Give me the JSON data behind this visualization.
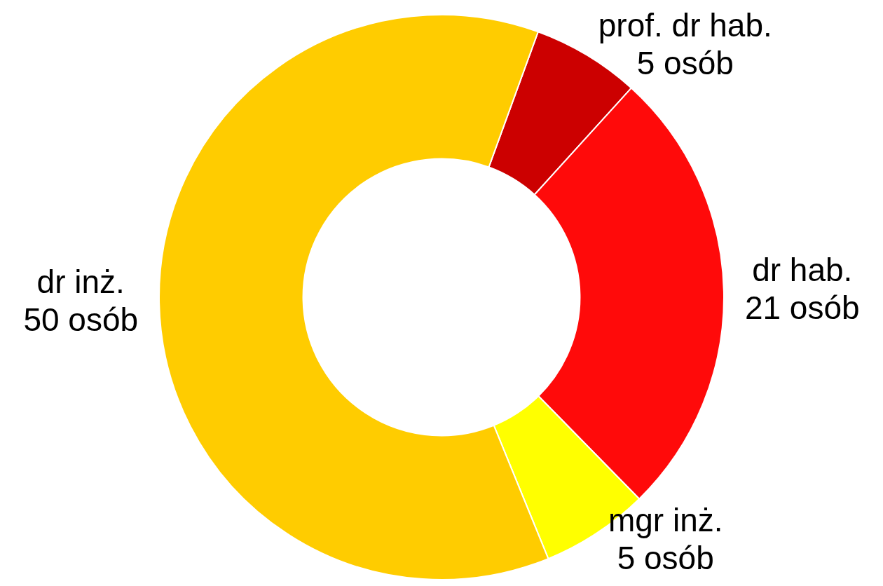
{
  "chart_data": {
    "type": "donut",
    "categories": [
      "prof. dr hab.",
      "dr hab.",
      "mgr inż.",
      "dr inż."
    ],
    "values": [
      5,
      21,
      5,
      50
    ],
    "value_labels": [
      "5 osób",
      "21 osób",
      "5 osób",
      "50 osób"
    ],
    "colors": [
      "#cc0000",
      "#ff0a0a",
      "#ffff00",
      "#ffcc00"
    ],
    "legend": false
  }
}
